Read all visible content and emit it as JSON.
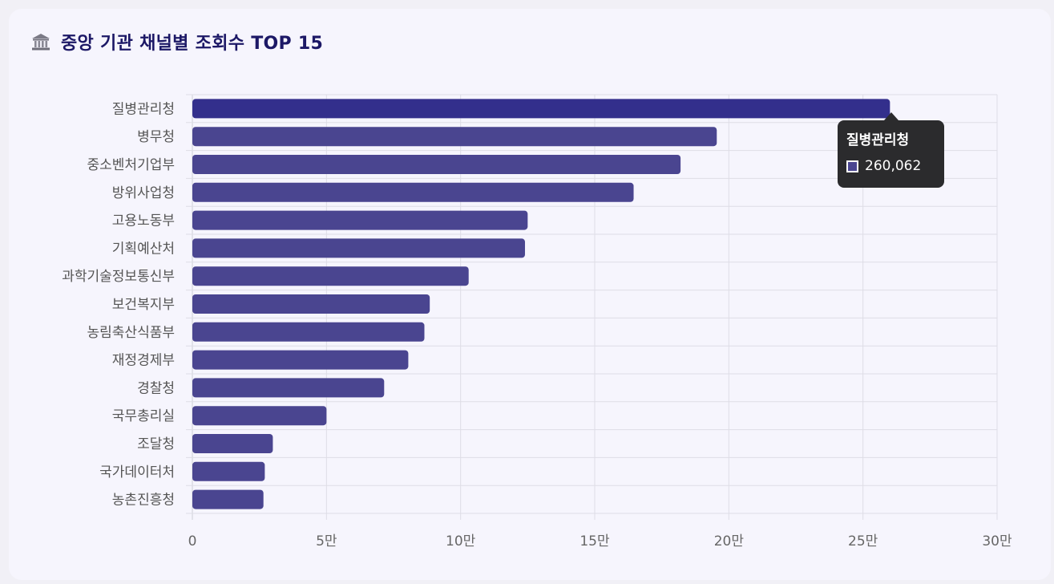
{
  "header": {
    "title": "중앙 기관 채널별 조회수 TOP 15",
    "icon": "bank-building-icon"
  },
  "chart_data": {
    "type": "bar",
    "orientation": "horizontal",
    "title": "중앙 기관 채널별 조회수 TOP 15",
    "xlabel": "",
    "ylabel": "",
    "xlim": [
      0,
      300000
    ],
    "x_ticks": [
      0,
      50000,
      100000,
      150000,
      200000,
      250000,
      300000
    ],
    "x_tick_labels": [
      "0",
      "5만",
      "10만",
      "15만",
      "20만",
      "25만",
      "30만"
    ],
    "grid": true,
    "categories": [
      "질병관리청",
      "병무청",
      "중소벤처기업부",
      "방위사업청",
      "고용노동부",
      "기획예산처",
      "과학기술정보통신부",
      "보건복지부",
      "농림축산식품부",
      "재정경제부",
      "경찰청",
      "국무총리실",
      "조달청",
      "국가데이터처",
      "농촌진흥청"
    ],
    "values": [
      260062,
      195500,
      182000,
      164500,
      125000,
      124000,
      103000,
      88500,
      86500,
      80500,
      71500,
      50000,
      30000,
      27000,
      26500
    ],
    "bar_color": "#4a4590",
    "highlight_color": "#332f8c"
  },
  "tooltip": {
    "title": "질병관리청",
    "value": "260,062",
    "swatch_color": "#4a4590"
  }
}
